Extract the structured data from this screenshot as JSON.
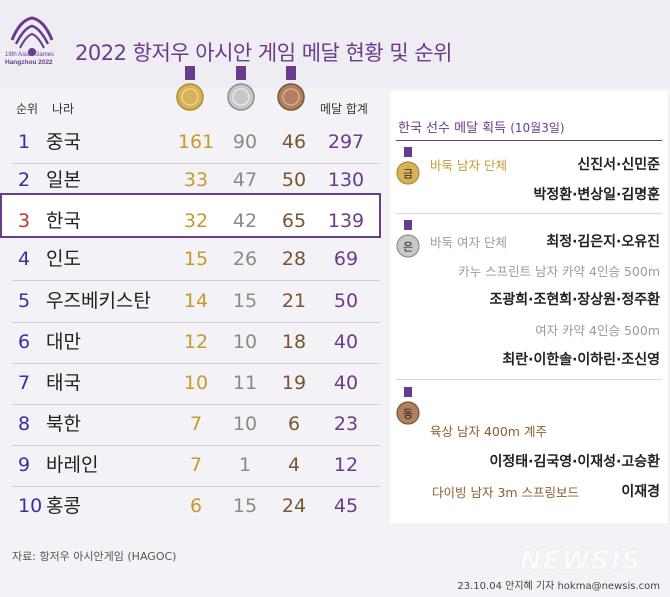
{
  "header": {
    "logo_text": [
      "19th Asian Games",
      "Hangzhou 2022"
    ],
    "title": "2022 항저우 아시안 게임 메달 현황 및 순위"
  },
  "columns": {
    "rank": "순위",
    "country": "나라",
    "total": "메달 합계"
  },
  "medal_colors": {
    "gold": "#d8b25a",
    "silver": "#c8c8c8",
    "bronze": "#b08060",
    "accent": "#6a3c8c"
  },
  "standings": [
    {
      "rank": "1",
      "country": "중국",
      "gold": "161",
      "silver": "90",
      "bronze": "46",
      "total": "297"
    },
    {
      "rank": "2",
      "country": "일본",
      "gold": "33",
      "silver": "47",
      "bronze": "50",
      "total": "130"
    },
    {
      "rank": "3",
      "country": "한국",
      "gold": "32",
      "silver": "42",
      "bronze": "65",
      "total": "139"
    },
    {
      "rank": "4",
      "country": "인도",
      "gold": "15",
      "silver": "26",
      "bronze": "28",
      "total": "69"
    },
    {
      "rank": "5",
      "country": "우즈베키스탄",
      "gold": "14",
      "silver": "15",
      "bronze": "21",
      "total": "50"
    },
    {
      "rank": "6",
      "country": "대만",
      "gold": "12",
      "silver": "10",
      "bronze": "18",
      "total": "40"
    },
    {
      "rank": "7",
      "country": "태국",
      "gold": "10",
      "silver": "11",
      "bronze": "19",
      "total": "40"
    },
    {
      "rank": "8",
      "country": "북한",
      "gold": "7",
      "silver": "10",
      "bronze": "6",
      "total": "23"
    },
    {
      "rank": "9",
      "country": "바레인",
      "gold": "7",
      "silver": "1",
      "bronze": "4",
      "total": "12"
    },
    {
      "rank": "10",
      "country": "홍콩",
      "gold": "6",
      "silver": "15",
      "bronze": "24",
      "total": "45"
    }
  ],
  "panel": {
    "title": "한국 선수 메달 획득",
    "date": "(10월3일)",
    "gold_badge": "금",
    "silver_badge": "은",
    "bronze_badge": "동",
    "gold_event_1": "바둑 남자 단체",
    "gold_athletes_1a": "신진서·신민준",
    "gold_athletes_1b": "박정환·변상일·김명훈",
    "silver_event_1": "바둑 여자 단체",
    "silver_athletes_1": "최정·김은지·오유진",
    "silver_event_2": "카누 스프린트 남자 카약 4인승 500m",
    "silver_athletes_2": "조광희·조현희·장상원·정주환",
    "silver_event_3": "여자 카약 4인승 500m",
    "silver_athletes_3": "최란·이한솔·이하린·조신영",
    "bronze_event_1": "육상 남자 400m 계주",
    "bronze_athletes_1": "이정태·김국영·이재성·고승환",
    "bronze_event_2": "다이빙 남자 3m 스프링보드",
    "bronze_athletes_2": "이재경"
  },
  "footer": {
    "source": "자료: 항저우 아시안게임 (HAGOC)",
    "credit": "23.10.04 안지혜 기자 hokma@newsis.com",
    "watermark": "NEWSIS"
  }
}
